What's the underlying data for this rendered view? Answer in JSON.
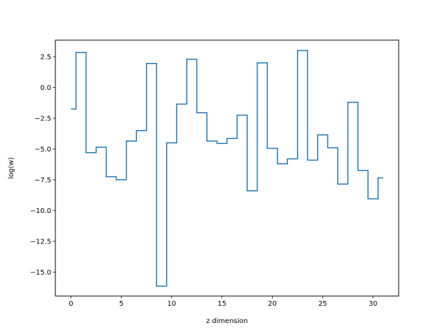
{
  "chart_data": {
    "type": "line",
    "drawstyle": "steps-mid",
    "title": "",
    "xlabel": "z dimension",
    "ylabel": "log(w)",
    "xlim": [
      -1.55,
      32.55
    ],
    "ylim": [
      -16.95,
      3.85
    ],
    "xticks": [
      0,
      5,
      10,
      15,
      20,
      25,
      30
    ],
    "xtick_labels": [
      "0",
      "5",
      "10",
      "15",
      "20",
      "25",
      "30"
    ],
    "yticks": [
      2.5,
      0.0,
      -2.5,
      -5.0,
      -7.5,
      -10.0,
      -12.5,
      -15.0
    ],
    "ytick_labels": [
      "2.5",
      "0.0",
      "−2.5",
      "−5.0",
      "−7.5",
      "−10.0",
      "−12.5",
      "−15.0"
    ],
    "grid": false,
    "line_color": "#1f77b4",
    "x": [
      0,
      1,
      2,
      3,
      4,
      5,
      6,
      7,
      8,
      9,
      10,
      11,
      12,
      13,
      14,
      15,
      16,
      17,
      18,
      19,
      20,
      21,
      22,
      23,
      24,
      25,
      26,
      27,
      28,
      29,
      30,
      31
    ],
    "y": [
      -1.75,
      2.85,
      -5.3,
      -4.85,
      -7.25,
      -7.5,
      -4.35,
      -3.5,
      1.95,
      -16.15,
      -4.5,
      -1.35,
      2.3,
      -2.05,
      -4.35,
      -4.55,
      -4.15,
      -2.25,
      -8.4,
      2.0,
      -4.95,
      -6.2,
      -5.8,
      3.0,
      -5.9,
      -3.85,
      -4.9,
      -7.85,
      -1.2,
      -6.75,
      -9.05,
      -7.35
    ]
  }
}
